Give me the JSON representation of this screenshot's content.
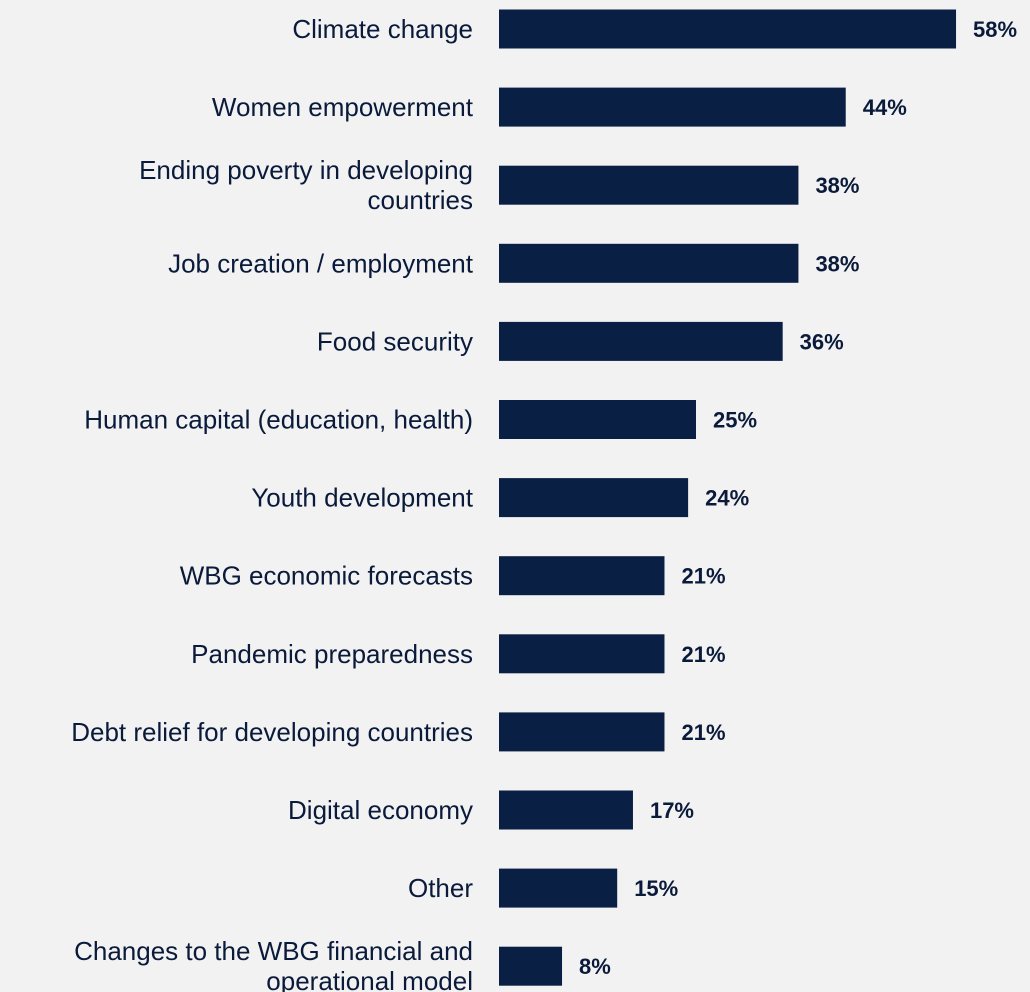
{
  "chart_data": {
    "type": "bar",
    "orientation": "horizontal",
    "categories": [
      [
        "Climate change"
      ],
      [
        "Women empowerment"
      ],
      [
        "Ending poverty in developing",
        "countries"
      ],
      [
        "Job creation / employment"
      ],
      [
        "Food security"
      ],
      [
        "Human capital (education, health)"
      ],
      [
        "Youth development"
      ],
      [
        "WBG economic forecasts"
      ],
      [
        "Pandemic preparedness"
      ],
      [
        "Debt relief for developing countries"
      ],
      [
        "Digital economy"
      ],
      [
        "Other"
      ],
      [
        "Changes to the WBG financial and",
        "operational model"
      ]
    ],
    "values": [
      58,
      44,
      38,
      38,
      36,
      25,
      24,
      21,
      21,
      21,
      17,
      15,
      8
    ],
    "value_labels": [
      "58%",
      "44%",
      "38%",
      "38%",
      "36%",
      "25%",
      "24%",
      "21%",
      "21%",
      "21%",
      "17%",
      "15%",
      "8%"
    ],
    "bar_color": "#0a1f44",
    "text_color": "#0a1a3a",
    "background": "#f2f2f2"
  }
}
